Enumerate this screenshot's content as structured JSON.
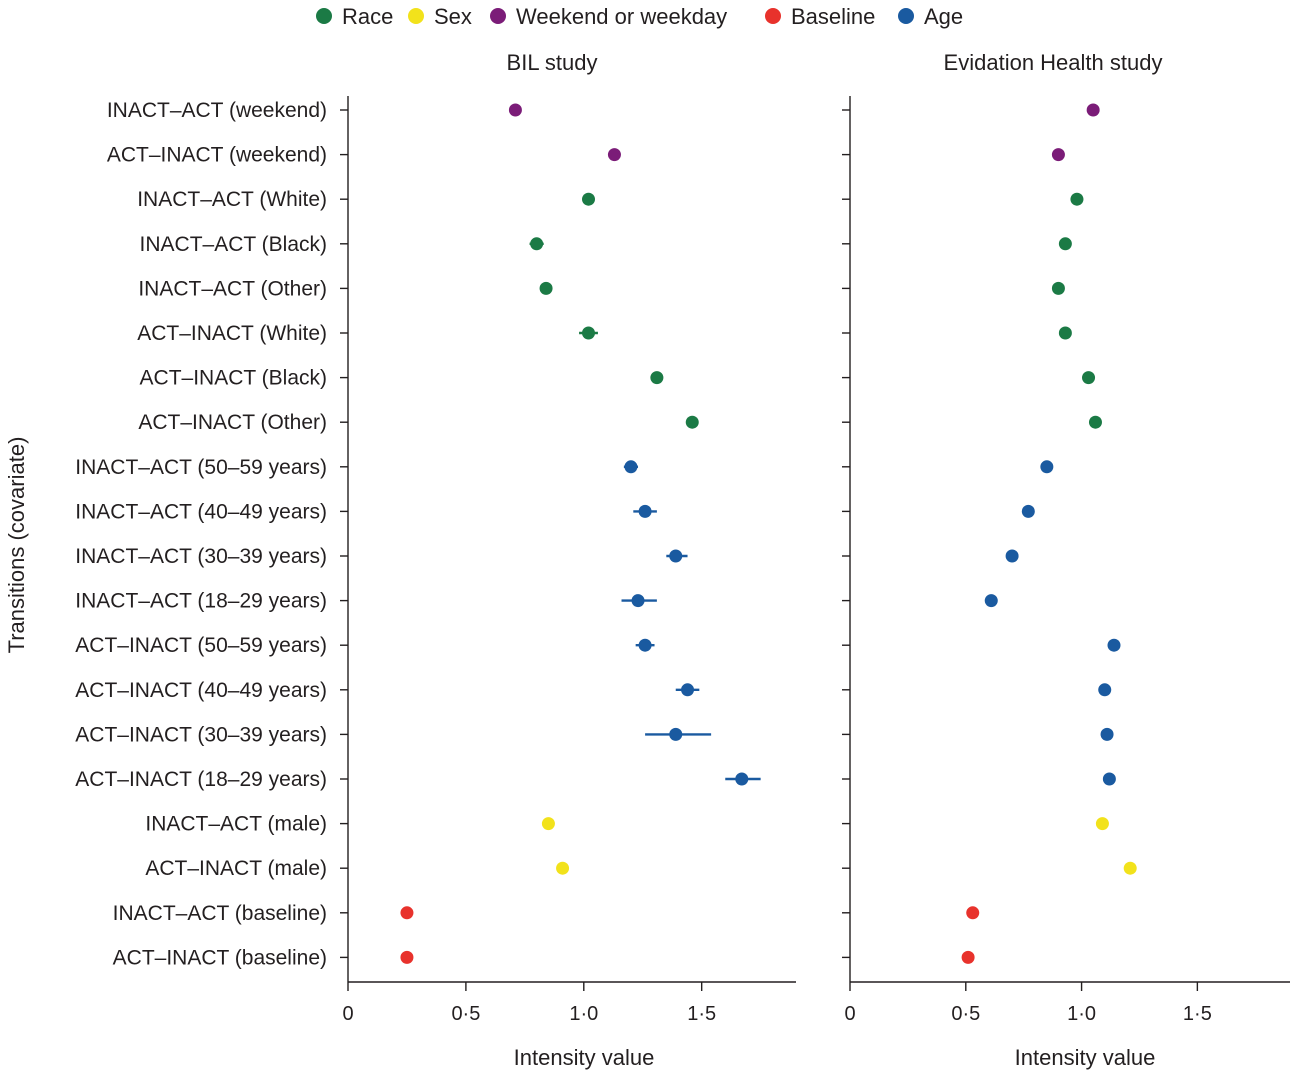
{
  "chart_data": {
    "type": "scatter",
    "subtype": "forest-plot-with-error-bars",
    "ylabel": "Transitions (covariate)",
    "legend": {
      "placement": "top",
      "entries": [
        {
          "name": "Race",
          "color": "#1b7a45"
        },
        {
          "name": "Sex",
          "color": "#f2e21b"
        },
        {
          "name": "Weekend or weekday",
          "color": "#7b1c78"
        },
        {
          "name": "Baseline",
          "color": "#e8322c"
        },
        {
          "name": "Age",
          "color": "#1a5aa0"
        }
      ]
    },
    "categories": [
      {
        "label": "INACT–ACT (weekend)",
        "group": "Weekend or weekday"
      },
      {
        "label": "ACT–INACT (weekend)",
        "group": "Weekend or weekday"
      },
      {
        "label": "INACT–ACT (White)",
        "group": "Race"
      },
      {
        "label": "INACT–ACT (Black)",
        "group": "Race"
      },
      {
        "label": "INACT–ACT (Other)",
        "group": "Race"
      },
      {
        "label": "ACT–INACT (White)",
        "group": "Race"
      },
      {
        "label": "ACT–INACT (Black)",
        "group": "Race"
      },
      {
        "label": "ACT–INACT (Other)",
        "group": "Race"
      },
      {
        "label": "INACT–ACT (50–59 years)",
        "group": "Age"
      },
      {
        "label": "INACT–ACT (40–49 years)",
        "group": "Age"
      },
      {
        "label": "INACT–ACT (30–39 years)",
        "group": "Age"
      },
      {
        "label": "INACT–ACT (18–29 years)",
        "group": "Age"
      },
      {
        "label": "ACT–INACT (50–59 years)",
        "group": "Age"
      },
      {
        "label": "ACT–INACT (40–49 years)",
        "group": "Age"
      },
      {
        "label": "ACT–INACT (30–39 years)",
        "group": "Age"
      },
      {
        "label": "ACT–INACT (18–29 years)",
        "group": "Age"
      },
      {
        "label": "INACT–ACT (male)",
        "group": "Sex"
      },
      {
        "label": "ACT–INACT (male)",
        "group": "Sex"
      },
      {
        "label": "INACT–ACT (baseline)",
        "group": "Baseline"
      },
      {
        "label": "ACT–INACT (baseline)",
        "group": "Baseline"
      }
    ],
    "panels": [
      {
        "title": "BIL study",
        "xlabel": "Intensity value",
        "xlim": [
          0,
          1.9
        ],
        "xticks": [
          0,
          0.5,
          1.0,
          1.5
        ],
        "xtick_labels": [
          "0",
          "0·5",
          "1·0",
          "1·5"
        ],
        "points": [
          {
            "value": 0.71,
            "lo": 0.7,
            "hi": 0.72
          },
          {
            "value": 1.13,
            "lo": 1.12,
            "hi": 1.14
          },
          {
            "value": 1.02,
            "lo": 1.01,
            "hi": 1.03
          },
          {
            "value": 0.8,
            "lo": 0.77,
            "hi": 0.83
          },
          {
            "value": 0.84,
            "lo": 0.83,
            "hi": 0.85
          },
          {
            "value": 1.02,
            "lo": 0.98,
            "hi": 1.06
          },
          {
            "value": 1.31,
            "lo": 1.29,
            "hi": 1.33
          },
          {
            "value": 1.46,
            "lo": 1.45,
            "hi": 1.47
          },
          {
            "value": 1.2,
            "lo": 1.17,
            "hi": 1.23
          },
          {
            "value": 1.26,
            "lo": 1.21,
            "hi": 1.31
          },
          {
            "value": 1.39,
            "lo": 1.35,
            "hi": 1.44
          },
          {
            "value": 1.23,
            "lo": 1.16,
            "hi": 1.31
          },
          {
            "value": 1.26,
            "lo": 1.22,
            "hi": 1.3
          },
          {
            "value": 1.44,
            "lo": 1.39,
            "hi": 1.49
          },
          {
            "value": 1.39,
            "lo": 1.26,
            "hi": 1.54
          },
          {
            "value": 1.67,
            "lo": 1.6,
            "hi": 1.75
          },
          {
            "value": 0.85,
            "lo": 0.84,
            "hi": 0.86
          },
          {
            "value": 0.91,
            "lo": 0.9,
            "hi": 0.92
          },
          {
            "value": 0.25,
            "lo": 0.245,
            "hi": 0.255
          },
          {
            "value": 0.25,
            "lo": 0.245,
            "hi": 0.255
          }
        ]
      },
      {
        "title": "Evidation Health study",
        "xlabel": "Intensity value",
        "xlim": [
          0,
          1.9
        ],
        "xticks": [
          0,
          0.5,
          1.0,
          1.5
        ],
        "xtick_labels": [
          "0",
          "0·5",
          "1·0",
          "1·5"
        ],
        "points": [
          {
            "value": 1.05,
            "lo": 1.045,
            "hi": 1.055
          },
          {
            "value": 0.9,
            "lo": 0.895,
            "hi": 0.905
          },
          {
            "value": 0.98,
            "lo": 0.975,
            "hi": 0.985
          },
          {
            "value": 0.93,
            "lo": 0.925,
            "hi": 0.935
          },
          {
            "value": 0.9,
            "lo": 0.895,
            "hi": 0.905
          },
          {
            "value": 0.93,
            "lo": 0.925,
            "hi": 0.935
          },
          {
            "value": 1.03,
            "lo": 1.025,
            "hi": 1.035
          },
          {
            "value": 1.06,
            "lo": 1.055,
            "hi": 1.065
          },
          {
            "value": 0.85,
            "lo": 0.845,
            "hi": 0.855
          },
          {
            "value": 0.77,
            "lo": 0.765,
            "hi": 0.775
          },
          {
            "value": 0.7,
            "lo": 0.695,
            "hi": 0.705
          },
          {
            "value": 0.61,
            "lo": 0.605,
            "hi": 0.615
          },
          {
            "value": 1.14,
            "lo": 1.135,
            "hi": 1.145
          },
          {
            "value": 1.1,
            "lo": 1.095,
            "hi": 1.105
          },
          {
            "value": 1.11,
            "lo": 1.105,
            "hi": 1.115
          },
          {
            "value": 1.12,
            "lo": 1.115,
            "hi": 1.125
          },
          {
            "value": 1.09,
            "lo": 1.085,
            "hi": 1.095
          },
          {
            "value": 1.21,
            "lo": 1.205,
            "hi": 1.215
          },
          {
            "value": 0.53,
            "lo": 0.525,
            "hi": 0.535
          },
          {
            "value": 0.51,
            "lo": 0.505,
            "hi": 0.515
          }
        ]
      }
    ]
  }
}
